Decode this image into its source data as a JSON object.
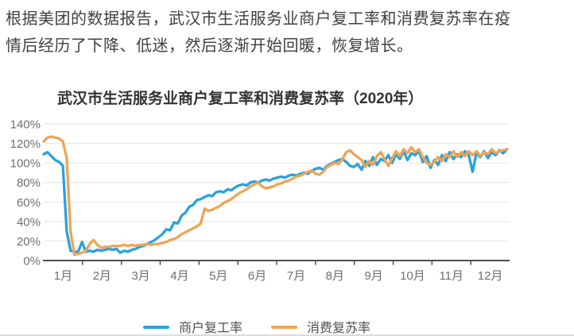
{
  "intro": {
    "line1": "根据美团的数据报告，武汉市生活服务业商户复工率和消费复苏率在疫",
    "line2": "情后经历了下降、低迷，然后逐渐开始回暖，恢复增长。"
  },
  "chart_data": {
    "type": "line",
    "title": "武汉市生活服务业商户复工率和消费复苏率（2020年）",
    "ylim": [
      0,
      140
    ],
    "y_tick_labels": [
      "0%",
      "20%",
      "40%",
      "60%",
      "80%",
      "100%",
      "120%",
      "140%"
    ],
    "x_tick_labels": [
      "1月",
      "2月",
      "3月",
      "4月",
      "5月",
      "6月",
      "7月",
      "8月",
      "9月",
      "10月",
      "11月",
      "12月"
    ],
    "x_unit": "2020年逐日（每3天取样）",
    "day_step": 3,
    "days_in_year": 366,
    "grid": true,
    "legend_position": "bottom",
    "series": [
      {
        "name": "商户复工率",
        "color": "#29a2dc",
        "values": [
          109,
          111,
          107,
          103,
          101,
          97,
          30,
          10,
          9,
          9,
          19,
          9,
          10,
          9,
          11,
          10,
          11,
          12,
          11,
          12,
          8,
          10,
          9,
          11,
          12,
          14,
          15,
          17,
          19,
          21,
          24,
          27,
          32,
          31,
          39,
          38,
          46,
          49,
          55,
          57,
          62,
          63,
          65,
          67,
          66,
          70,
          71,
          70,
          73,
          72,
          75,
          77,
          78,
          77,
          80,
          81,
          80,
          82,
          83,
          82,
          84,
          85,
          86,
          85,
          87,
          88,
          87,
          89,
          90,
          89,
          92,
          94,
          95,
          93,
          97,
          99,
          101,
          103,
          104,
          101,
          97,
          96,
          99,
          93,
          102,
          97,
          106,
          98,
          104,
          102,
          108,
          100,
          109,
          104,
          112,
          103,
          110,
          108,
          112,
          101,
          107,
          95,
          103,
          98,
          108,
          102,
          111,
          104,
          109,
          106,
          112,
          108,
          91,
          110,
          106,
          112,
          105,
          111,
          108,
          113,
          110,
          114
        ]
      },
      {
        "name": "消费复苏率",
        "color": "#f0a355",
        "values": [
          122,
          126,
          127,
          126,
          125,
          122,
          105,
          30,
          6,
          7,
          8,
          10,
          17,
          21,
          16,
          13,
          14,
          14,
          15,
          15,
          15,
          16,
          15,
          16,
          15,
          16,
          16,
          17,
          16,
          17,
          17,
          18,
          19,
          21,
          22,
          24,
          27,
          29,
          31,
          33,
          35,
          38,
          53,
          51,
          52,
          54,
          56,
          59,
          61,
          63,
          66,
          69,
          71,
          73,
          76,
          78,
          80,
          76,
          74,
          75,
          76,
          78,
          79,
          81,
          82,
          84,
          86,
          87,
          89,
          91,
          92,
          89,
          88,
          91,
          96,
          98,
          100,
          99,
          104,
          111,
          113,
          109,
          106,
          103,
          96,
          102,
          98,
          107,
          111,
          104,
          97,
          105,
          112,
          107,
          114,
          110,
          116,
          111,
          114,
          106,
          100,
          98,
          101,
          106,
          102,
          109,
          106,
          112,
          106,
          111,
          107,
          112,
          108,
          112,
          107,
          111,
          109,
          114,
          110,
          112,
          113,
          114
        ]
      }
    ]
  }
}
